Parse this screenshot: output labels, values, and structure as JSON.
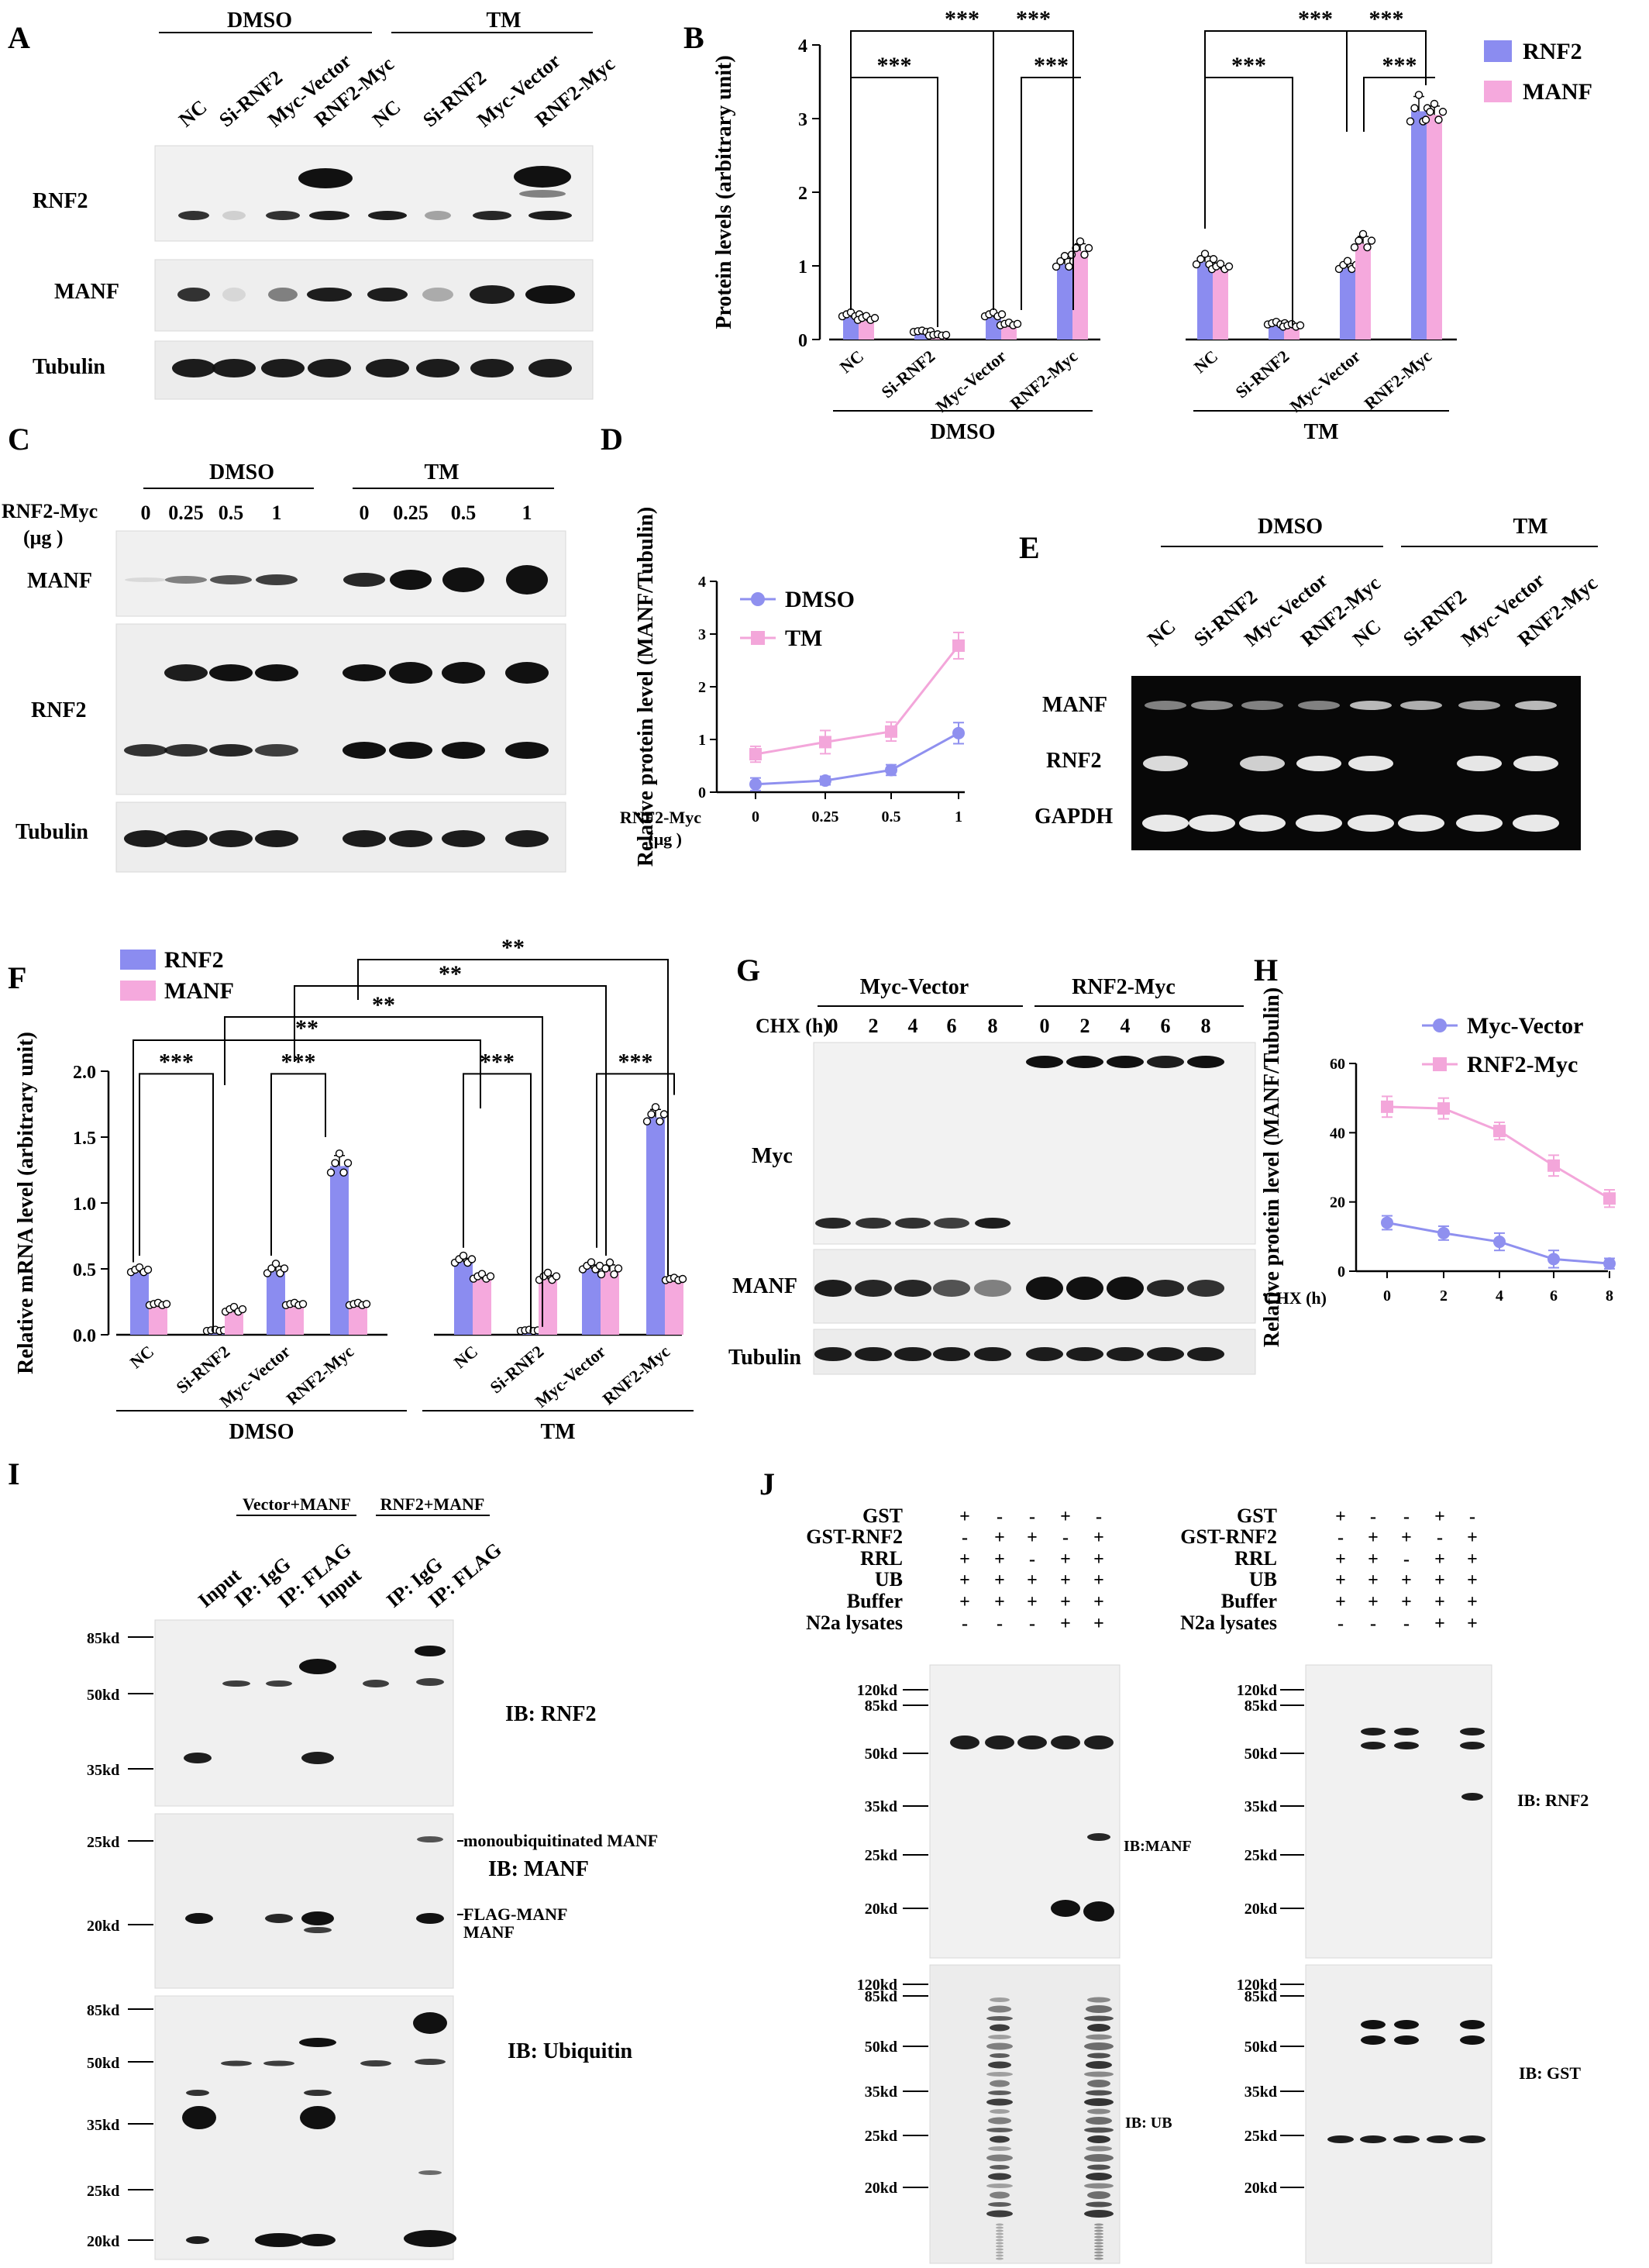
{
  "panels": {
    "A": {
      "letter": "A",
      "groups": [
        "DMSO",
        "TM"
      ],
      "lanes": [
        "NC",
        "Si-RNF2",
        "Myc-Vector",
        "RNF2-Myc",
        "NC",
        "Si-RNF2",
        "Myc-Vector",
        "RNF2-Myc"
      ],
      "blots": [
        "RNF2",
        "MANF",
        "Tubulin"
      ]
    },
    "B": {
      "letter": "B",
      "legend": [
        "RNF2",
        "MANF"
      ],
      "colors": {
        "RNF2": "#8b8cf0",
        "MANF": "#f5a9dd"
      },
      "sig": "***"
    },
    "C": {
      "letter": "C",
      "groups": [
        "DMSO",
        "TM"
      ],
      "row_label": "RNF2-Myc",
      "unit": "(μg )",
      "doses": [
        "0",
        "0.25",
        "0.5",
        "1",
        "0",
        "0.25",
        "0.5",
        "1"
      ],
      "blots": [
        "MANF",
        "RNF2",
        "Tubulin"
      ]
    },
    "D": {
      "letter": "D",
      "xlabel_line1": "RNF2-Myc",
      "xlabel_line2": "(μg )"
    },
    "E": {
      "letter": "E",
      "groups": [
        "DMSO",
        "TM"
      ],
      "lanes": [
        "NC",
        "Si-RNF2",
        "Myc-Vector",
        "RNF2-Myc",
        "NC",
        "Si-RNF2",
        "Myc-Vector",
        "RNF2-Myc"
      ],
      "blots": [
        "MANF",
        "RNF2",
        "GAPDH"
      ]
    },
    "F": {
      "letter": "F",
      "legend": [
        "RNF2",
        "MANF"
      ],
      "sig3": "***",
      "sig2": "**"
    },
    "G": {
      "letter": "G",
      "groups": [
        "Myc-Vector",
        "RNF2-Myc"
      ],
      "row_label": "CHX (h)",
      "times": [
        "0",
        "2",
        "4",
        "6",
        "8",
        "0",
        "2",
        "4",
        "6",
        "8"
      ],
      "blots": [
        "Myc",
        "MANF",
        "Tubulin"
      ]
    },
    "H": {
      "letter": "H"
    },
    "I": {
      "letter": "I",
      "groups": [
        "Vector+MANF",
        "RNF2+MANF"
      ],
      "lanes": [
        "Input",
        "IP: IgG",
        "IP: FLAG",
        "Input",
        "IP: IgG",
        "IP: FLAG"
      ],
      "markers_top": [
        "85kd",
        "50kd",
        "35kd"
      ],
      "markers_mid": [
        "25kd",
        "20kd"
      ],
      "markers_bot": [
        "85kd",
        "50kd",
        "35kd",
        "25kd",
        "20kd"
      ],
      "ib": [
        "IB: RNF2",
        "IB: MANF",
        "IB: Ubiquitin"
      ],
      "band_labels": [
        "monoubiquitinated MANF",
        "FLAG-MANF",
        "MANF"
      ]
    },
    "J": {
      "letter": "J",
      "rows": [
        {
          "label": "GST",
          "signs": [
            "+",
            "-",
            "-",
            "+",
            "-"
          ]
        },
        {
          "label": "GST-RNF2",
          "signs": [
            "-",
            "+",
            "+",
            "-",
            "+"
          ]
        },
        {
          "label": "RRL",
          "signs": [
            "+",
            "+",
            "-",
            "+",
            "+"
          ]
        },
        {
          "label": "UB",
          "signs": [
            "+",
            "+",
            "+",
            "+",
            "+"
          ]
        },
        {
          "label": "Buffer",
          "signs": [
            "+",
            "+",
            "+",
            "+",
            "+"
          ]
        },
        {
          "label": "N2a lysates",
          "signs": [
            "-",
            "-",
            "-",
            "+",
            "+"
          ]
        }
      ],
      "markers_a": [
        "120kd",
        "85kd",
        "50kd",
        "35kd",
        "25kd",
        "20kd"
      ],
      "markers_b": [
        "120kd",
        "85kd",
        "50kd",
        "35kd",
        "25kd",
        "20kd"
      ],
      "ib_left": [
        "IB:MANF",
        "IB: UB"
      ],
      "ib_right": [
        "IB: RNF2",
        "IB: GST"
      ]
    }
  },
  "chart_data": [
    {
      "panel": "B",
      "type": "bar",
      "ylabel": "Protein levels (arbitrary unit)",
      "ylim": [
        0,
        4
      ],
      "yticks": [
        0,
        1,
        2,
        3,
        4
      ],
      "groups": [
        "DMSO",
        "TM"
      ],
      "categories": [
        "NC",
        "Si-RNF2",
        "Myc-Vector",
        "RNF2-Myc"
      ],
      "series": [
        {
          "name": "RNF2",
          "values": [
            [
              0.3,
              0.07,
              0.3,
              1.02
            ],
            [
              1.05,
              0.18,
              0.97,
              3.1
            ]
          ],
          "errors": [
            [
              0.03,
              0.01,
              0.03,
              0.08
            ],
            [
              0.08,
              0.02,
              0.06,
              0.2
            ]
          ]
        },
        {
          "name": "MANF",
          "values": [
            [
              0.25,
              0.02,
              0.17,
              1.2
            ],
            [
              0.95,
              0.15,
              1.3,
              3.05
            ]
          ],
          "errors": [
            [
              0.03,
              0.01,
              0.02,
              0.1
            ],
            [
              0.04,
              0.02,
              0.1,
              0.12
            ]
          ]
        }
      ],
      "significance": "***",
      "legend_position": "top-right"
    },
    {
      "panel": "D",
      "type": "line",
      "ylabel": "Relative protein level (MANF/Tubulin)",
      "xlabel": "RNF2-Myc (μg )",
      "x": [
        "0",
        "0.25",
        "0.5",
        "1"
      ],
      "ylim": [
        0,
        4
      ],
      "yticks": [
        0,
        1,
        2,
        3,
        4
      ],
      "series": [
        {
          "name": "DMSO",
          "values": [
            0.15,
            0.22,
            0.42,
            1.12
          ],
          "errors": [
            0.12,
            0.08,
            0.1,
            0.2
          ]
        },
        {
          "name": "TM",
          "values": [
            0.72,
            0.95,
            1.15,
            2.78
          ],
          "errors": [
            0.15,
            0.22,
            0.18,
            0.25
          ]
        }
      ],
      "legend_position": "top-left"
    },
    {
      "panel": "F",
      "type": "bar",
      "ylabel": "Relative mRNA level (arbitrary unit)",
      "ylim": [
        0,
        2
      ],
      "yticks": [
        "0.0",
        "0.5",
        "1.0",
        "1.5",
        "2.0"
      ],
      "groups": [
        "DMSO",
        "TM"
      ],
      "categories": [
        "NC",
        "Si-RNF2",
        "Myc-Vector",
        "RNF2-Myc"
      ],
      "series": [
        {
          "name": "RNF2",
          "values": [
            [
              0.47,
              0.01,
              0.48,
              1.28
            ],
            [
              0.55,
              0.01,
              0.5,
              1.65
            ]
          ],
          "errors": [
            [
              0.02,
              0.005,
              0.04,
              0.08
            ],
            [
              0.03,
              0.005,
              0.03,
              0.06
            ]
          ]
        },
        {
          "name": "MANF",
          "values": [
            [
              0.21,
              0.17,
              0.21,
              0.21
            ],
            [
              0.42,
              0.42,
              0.48,
              0.4
            ]
          ],
          "errors": [
            [
              0.01,
              0.02,
              0.01,
              0.01
            ],
            [
              0.02,
              0.03,
              0.05,
              0.01
            ]
          ]
        }
      ],
      "legend_position": "top-left"
    },
    {
      "panel": "H",
      "type": "line",
      "ylabel": "Relative protein level (MANF/Tubulin)",
      "xlabel": "CHX (h)",
      "x": [
        "0",
        "2",
        "4",
        "6",
        "8"
      ],
      "ylim": [
        0,
        60
      ],
      "yticks": [
        0,
        20,
        40,
        60
      ],
      "series": [
        {
          "name": "Myc-Vector",
          "values": [
            14,
            11,
            8.5,
            3.5,
            2.2
          ],
          "errors": [
            2,
            2,
            2.5,
            2.5,
            1.5
          ]
        },
        {
          "name": "RNF2-Myc",
          "values": [
            47.5,
            47,
            40.5,
            30.5,
            21
          ],
          "errors": [
            3,
            3,
            2.5,
            3,
            2.5
          ]
        }
      ],
      "legend_position": "top-right"
    }
  ]
}
